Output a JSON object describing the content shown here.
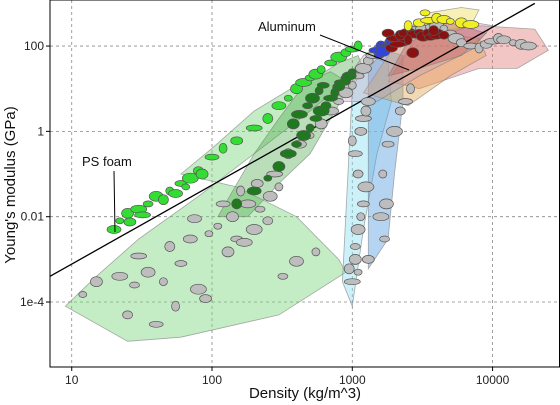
{
  "chart_data": {
    "type": "scatter",
    "title": "",
    "xlabel": "Density (kg/m^3)",
    "ylabel": "Young's modulus (GPa)",
    "x_scale": "log",
    "y_scale": "log",
    "xlim": [
      7,
      30000
    ],
    "ylim": [
      3e-06,
      1200
    ],
    "grid": true,
    "x_ticks": [
      10,
      100,
      1000,
      10000
    ],
    "x_tick_labels": [
      "10",
      "100",
      "1000",
      "10000"
    ],
    "y_ticks": [
      0.0001,
      0.01,
      1,
      100
    ],
    "y_tick_labels": [
      "1e-4",
      "0.01",
      "1",
      "100"
    ],
    "trend_line": {
      "x": [
        7,
        20000
      ],
      "y": [
        0.0004,
        1000
      ]
    },
    "annotations": [
      {
        "text": "Aluminum",
        "x": 2700,
        "y": 70
      },
      {
        "text": "PS foam",
        "x": 20,
        "y": 0.005
      }
    ],
    "colors": {
      "foams_green": "#33dd33",
      "woods_dark_green": "#1f7a1f",
      "ceramics_blue": "#3344dd",
      "metals_dark_red": "#8b1010",
      "stiff_yellow": "#f0f020",
      "generic_gray": "#bdbdbd",
      "outline": "#555555"
    },
    "series": [
      {
        "name": "",
        "color": "#bdbdbd",
        "points": [
          [
            12,
            0.00015
          ],
          [
            15,
            0.0003
          ],
          [
            22,
            0.0004
          ],
          [
            28,
            0.00025
          ],
          [
            35,
            0.0005
          ],
          [
            45,
            0.0003
          ],
          [
            60,
            0.0008
          ],
          [
            80,
            0.0002
          ],
          [
            25,
            5e-05
          ],
          [
            40,
            3e-05
          ],
          [
            55,
            8e-05
          ],
          [
            90,
            0.00012
          ],
          [
            30,
            0.0012
          ],
          [
            50,
            0.002
          ],
          [
            70,
            0.003
          ],
          [
            110,
            0.006
          ],
          [
            140,
            0.01
          ],
          [
            180,
            0.02
          ],
          [
            220,
            0.015
          ],
          [
            260,
            0.03
          ],
          [
            300,
            0.05
          ],
          [
            150,
            0.003
          ],
          [
            200,
            0.005
          ],
          [
            250,
            0.008
          ],
          [
            120,
            0.02
          ],
          [
            160,
            0.04
          ],
          [
            210,
            0.06
          ],
          [
            280,
            0.1
          ],
          [
            350,
            0.3
          ],
          [
            420,
            0.5
          ],
          [
            500,
            0.8
          ],
          [
            600,
            1.5
          ],
          [
            700,
            3
          ],
          [
            800,
            5
          ],
          [
            900,
            8
          ],
          [
            1000,
            12
          ],
          [
            1100,
            20
          ],
          [
            1200,
            30
          ],
          [
            1300,
            45
          ],
          [
            1400,
            60
          ],
          [
            1500,
            80
          ],
          [
            1700,
            100
          ],
          [
            1900,
            120
          ],
          [
            2100,
            150
          ],
          [
            2300,
            180
          ],
          [
            2500,
            200
          ],
          [
            2800,
            220
          ],
          [
            3200,
            250
          ],
          [
            3600,
            280
          ],
          [
            4000,
            300
          ],
          [
            4500,
            250
          ],
          [
            5000,
            200
          ],
          [
            5500,
            150
          ],
          [
            6000,
            120
          ],
          [
            7000,
            100
          ],
          [
            8000,
            90
          ],
          [
            9000,
            110
          ],
          [
            10000,
            130
          ],
          [
            11000,
            150
          ],
          [
            12000,
            140
          ],
          [
            14000,
            120
          ],
          [
            16000,
            110
          ],
          [
            18000,
            100
          ],
          [
            1050,
            0.002
          ],
          [
            1100,
            0.005
          ],
          [
            1150,
            0.01
          ],
          [
            1200,
            0.02
          ],
          [
            1250,
            0.05
          ],
          [
            1100,
            0.1
          ],
          [
            1050,
            0.3
          ],
          [
            1000,
            0.6
          ],
          [
            1150,
            1
          ],
          [
            1200,
            2
          ],
          [
            1250,
            3
          ],
          [
            1300,
            5
          ],
          [
            1100,
            0.0005
          ],
          [
            1050,
            0.001
          ],
          [
            1600,
            0.01
          ],
          [
            1700,
            0.003
          ],
          [
            1750,
            0.02
          ],
          [
            1650,
            0.1
          ],
          [
            1800,
            0.5
          ],
          [
            2000,
            1
          ],
          [
            2200,
            3
          ],
          [
            2400,
            5
          ],
          [
            2600,
            10
          ],
          [
            1300,
            0.001
          ],
          [
            1000,
            0.0003
          ],
          [
            950,
            0.0006
          ],
          [
            75,
            0.009
          ],
          [
            95,
            0.004
          ],
          [
            130,
            0.0015
          ],
          [
            170,
            0.0025
          ],
          [
            320,
            0.0004
          ],
          [
            400,
            0.0009
          ],
          [
            550,
            0.0015
          ]
        ]
      },
      {
        "name": "",
        "color": "#33dd33",
        "points": [
          [
            20,
            0.005
          ],
          [
            22,
            0.008
          ],
          [
            25,
            0.012
          ],
          [
            30,
            0.015
          ],
          [
            35,
            0.02
          ],
          [
            40,
            0.03
          ],
          [
            50,
            0.04
          ],
          [
            60,
            0.06
          ],
          [
            70,
            0.08
          ],
          [
            80,
            0.12
          ],
          [
            100,
            0.25
          ],
          [
            120,
            0.4
          ],
          [
            150,
            0.6
          ],
          [
            200,
            1.2
          ],
          [
            250,
            2
          ],
          [
            300,
            4
          ],
          [
            350,
            6
          ],
          [
            400,
            10
          ],
          [
            450,
            14
          ],
          [
            500,
            18
          ],
          [
            550,
            22
          ],
          [
            600,
            28
          ],
          [
            700,
            40
          ],
          [
            800,
            55
          ],
          [
            900,
            70
          ],
          [
            1000,
            85
          ],
          [
            1100,
            100
          ],
          [
            26,
            0.0075
          ],
          [
            32,
            0.011
          ],
          [
            45,
            0.025
          ],
          [
            55,
            0.035
          ],
          [
            65,
            0.05
          ],
          [
            85,
            0.1
          ]
        ]
      },
      {
        "name": "",
        "color": "#1f7a1f",
        "points": [
          [
            150,
            0.02
          ],
          [
            200,
            0.04
          ],
          [
            250,
            0.08
          ],
          [
            300,
            0.15
          ],
          [
            350,
            0.3
          ],
          [
            400,
            0.5
          ],
          [
            450,
            0.8
          ],
          [
            500,
            1.2
          ],
          [
            550,
            2
          ],
          [
            600,
            3
          ],
          [
            650,
            4
          ],
          [
            700,
            6
          ],
          [
            750,
            8
          ],
          [
            800,
            11
          ],
          [
            850,
            14
          ],
          [
            900,
            17
          ],
          [
            950,
            20
          ],
          [
            1000,
            25
          ],
          [
            380,
            1.5
          ],
          [
            420,
            2.5
          ],
          [
            480,
            4
          ],
          [
            520,
            6
          ],
          [
            580,
            9
          ],
          [
            620,
            12
          ]
        ]
      },
      {
        "name": "",
        "color": "#3344dd",
        "points": [
          [
            1500,
            80
          ],
          [
            1600,
            100
          ],
          [
            1700,
            90
          ],
          [
            1800,
            110
          ],
          [
            1900,
            130
          ],
          [
            2000,
            120
          ],
          [
            1550,
            60
          ],
          [
            1650,
            75
          ]
        ]
      },
      {
        "name": "",
        "color": "#8b1010",
        "points": [
          [
            1800,
            200
          ],
          [
            2000,
            150
          ],
          [
            2200,
            180
          ],
          [
            2400,
            200
          ],
          [
            2600,
            220
          ],
          [
            2700,
            70
          ],
          [
            2800,
            190
          ],
          [
            3000,
            210
          ],
          [
            3200,
            170
          ],
          [
            3400,
            200
          ],
          [
            3600,
            160
          ],
          [
            4000,
            190
          ],
          [
            4500,
            180
          ],
          [
            2300,
            120
          ],
          [
            2500,
            140
          ],
          [
            1900,
            90
          ],
          [
            2100,
            110
          ],
          [
            3800,
            230
          ]
        ]
      },
      {
        "name": "",
        "color": "#f0f020",
        "points": [
          [
            2500,
            300
          ],
          [
            3000,
            350
          ],
          [
            3500,
            400
          ],
          [
            4000,
            450
          ],
          [
            4500,
            420
          ],
          [
            5000,
            380
          ],
          [
            6000,
            350
          ],
          [
            7000,
            320
          ],
          [
            3300,
            600
          ]
        ]
      }
    ],
    "regions": [
      {
        "fill": "#7ed87e",
        "opacity": 0.45
      },
      {
        "fill": "#3aa03a",
        "opacity": 0.35
      },
      {
        "fill": "#8fe0f0",
        "opacity": 0.45
      },
      {
        "fill": "#5aa0e0",
        "opacity": 0.45
      },
      {
        "fill": "#e07070",
        "opacity": 0.4
      },
      {
        "fill": "#e0a040",
        "opacity": 0.4
      },
      {
        "fill": "#c0a0c0",
        "opacity": 0.35
      },
      {
        "fill": "#f0e060",
        "opacity": 0.45
      },
      {
        "fill": "#c05050",
        "opacity": 0.35
      }
    ]
  }
}
